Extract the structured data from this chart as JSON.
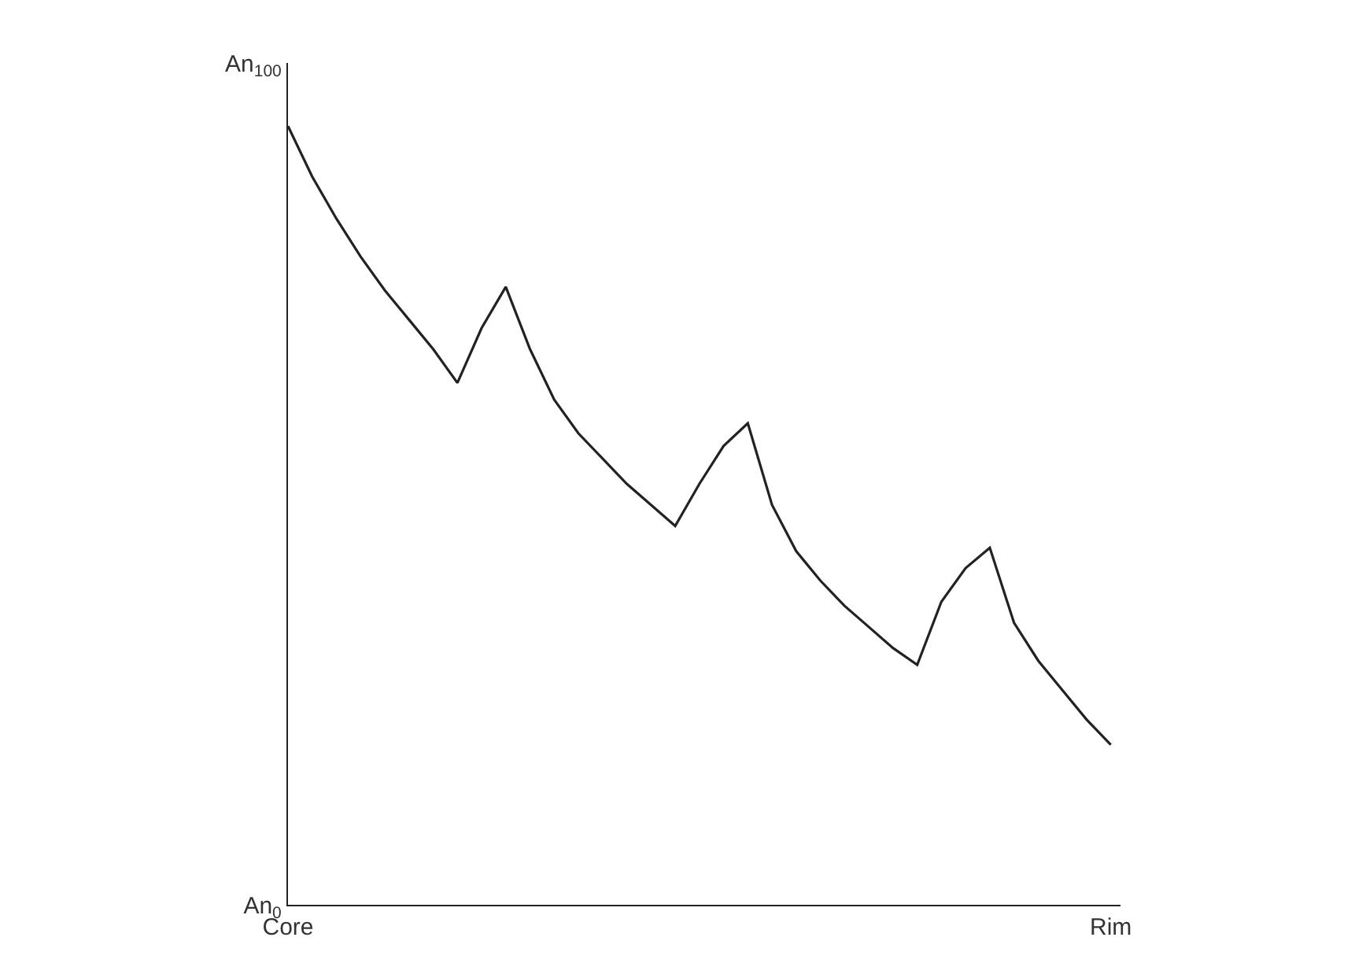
{
  "chart_data": {
    "type": "line",
    "categories": [
      "Core",
      null,
      null,
      null,
      null,
      null,
      null,
      null,
      null,
      null,
      null,
      null,
      null,
      null,
      null,
      null,
      null,
      null,
      null,
      null,
      null,
      null,
      null,
      null,
      null,
      null,
      null,
      null,
      null,
      null,
      null,
      null,
      null,
      null,
      "Rim"
    ],
    "series": [
      {
        "color": "#222222",
        "values": [
          92.5,
          86.5,
          81.5,
          77,
          73,
          69.5,
          66,
          62,
          68.5,
          73.4,
          66,
          60,
          56,
          53,
          50,
          47.5,
          45,
          50,
          54.5,
          57.2,
          47.5,
          42,
          38.5,
          35.5,
          33,
          30.5,
          28.5,
          36,
          40,
          42.4,
          33.5,
          29,
          25.5,
          22,
          19
        ]
      }
    ],
    "ylim": [
      0,
      100
    ],
    "yticks": [
      {
        "value": 0,
        "label": "An$_{0}$"
      },
      {
        "value": 100,
        "label": "An$_{100}$"
      }
    ],
    "marker": "none",
    "line_style": "solid"
  }
}
